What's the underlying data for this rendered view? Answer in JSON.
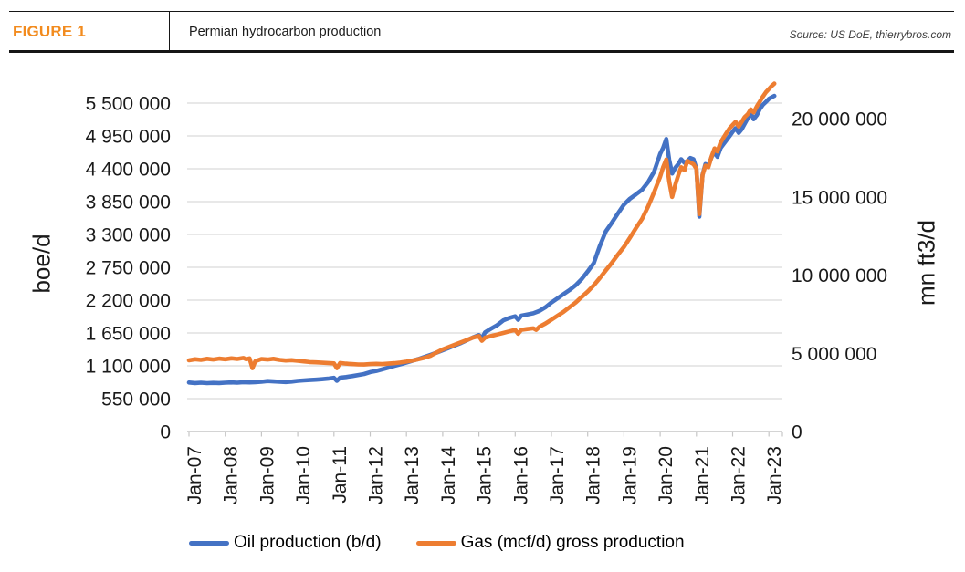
{
  "header": {
    "figure_label": "FIGURE 1",
    "title": "Permian hydrocarbon production",
    "source": "Source: US DoE, thierrybros.com"
  },
  "colors": {
    "oil": "#4472C4",
    "gas": "#ED7D31",
    "figure_label": "#F28B1E",
    "gridline": "#D9D9D9",
    "axis_line": "#C6C6C6",
    "text": "#1a1a1a"
  },
  "chart_data": {
    "type": "line",
    "title": "Permian hydrocarbon production",
    "grid": "horizontal",
    "legend_position": "bottom",
    "left_axis": {
      "title": "boe/d",
      "min": 0,
      "max": 5500000,
      "ticks": [
        {
          "value": 0,
          "label": "0"
        },
        {
          "value": 550000,
          "label": "550 000"
        },
        {
          "value": 1100000,
          "label": "1 100 000"
        },
        {
          "value": 1650000,
          "label": "1 650 000"
        },
        {
          "value": 2200000,
          "label": "2 200 000"
        },
        {
          "value": 2750000,
          "label": "2 750 000"
        },
        {
          "value": 3300000,
          "label": "3 300 000"
        },
        {
          "value": 3850000,
          "label": "3 850 000"
        },
        {
          "value": 4400000,
          "label": "4 400 000"
        },
        {
          "value": 4950000,
          "label": "4 950 000"
        },
        {
          "value": 5500000,
          "label": "5 500 000"
        }
      ]
    },
    "right_axis": {
      "title": "mn ft3/d",
      "min": 0,
      "max": 21000000,
      "ticks": [
        {
          "value": 0,
          "label": "0"
        },
        {
          "value": 5000000,
          "label": "5 000 000"
        },
        {
          "value": 10000000,
          "label": "10 000 000"
        },
        {
          "value": 15000000,
          "label": "15 000 000"
        },
        {
          "value": 20000000,
          "label": "20 000 000"
        }
      ]
    },
    "x_axis": {
      "start_year": 2007,
      "end_year": 2023,
      "ticks": [
        "Jan-07",
        "Jan-08",
        "Jan-09",
        "Jan-10",
        "Jan-11",
        "Jan-12",
        "Jan-13",
        "Jan-14",
        "Jan-15",
        "Jan-16",
        "Jan-17",
        "Jan-18",
        "Jan-19",
        "Jan-20",
        "Jan-21",
        "Jan-22",
        "Jan-23"
      ]
    },
    "series": [
      {
        "name": "Oil production (b/d)",
        "axis": "left",
        "color_key": "oil",
        "points": [
          [
            2007,
            820000
          ],
          [
            2007.17,
            812000
          ],
          [
            2007.33,
            818000
          ],
          [
            2007.5,
            810000
          ],
          [
            2007.67,
            815000
          ],
          [
            2007.83,
            812000
          ],
          [
            2008,
            818000
          ],
          [
            2008.17,
            822000
          ],
          [
            2008.33,
            818000
          ],
          [
            2008.5,
            825000
          ],
          [
            2008.67,
            822000
          ],
          [
            2008.83,
            826000
          ],
          [
            2009,
            832000
          ],
          [
            2009.17,
            845000
          ],
          [
            2009.33,
            838000
          ],
          [
            2009.5,
            832000
          ],
          [
            2009.67,
            828000
          ],
          [
            2009.83,
            835000
          ],
          [
            2010,
            848000
          ],
          [
            2010.17,
            855000
          ],
          [
            2010.33,
            862000
          ],
          [
            2010.5,
            868000
          ],
          [
            2010.67,
            875000
          ],
          [
            2010.83,
            885000
          ],
          [
            2011,
            898000
          ],
          [
            2011.08,
            848000
          ],
          [
            2011.17,
            902000
          ],
          [
            2011.33,
            912000
          ],
          [
            2011.5,
            928000
          ],
          [
            2011.67,
            945000
          ],
          [
            2011.83,
            962000
          ],
          [
            2012,
            995000
          ],
          [
            2012.17,
            1015000
          ],
          [
            2012.33,
            1040000
          ],
          [
            2012.5,
            1070000
          ],
          [
            2012.67,
            1100000
          ],
          [
            2012.83,
            1125000
          ],
          [
            2013,
            1155000
          ],
          [
            2013.17,
            1185000
          ],
          [
            2013.33,
            1215000
          ],
          [
            2013.5,
            1250000
          ],
          [
            2013.67,
            1285000
          ],
          [
            2013.83,
            1320000
          ],
          [
            2014,
            1360000
          ],
          [
            2014.17,
            1400000
          ],
          [
            2014.33,
            1440000
          ],
          [
            2014.5,
            1480000
          ],
          [
            2014.67,
            1530000
          ],
          [
            2014.83,
            1575000
          ],
          [
            2015,
            1615000
          ],
          [
            2015.08,
            1560000
          ],
          [
            2015.17,
            1660000
          ],
          [
            2015.33,
            1720000
          ],
          [
            2015.5,
            1780000
          ],
          [
            2015.67,
            1860000
          ],
          [
            2015.83,
            1900000
          ],
          [
            2016,
            1930000
          ],
          [
            2016.08,
            1870000
          ],
          [
            2016.17,
            1940000
          ],
          [
            2016.33,
            1960000
          ],
          [
            2016.5,
            1980000
          ],
          [
            2016.67,
            2020000
          ],
          [
            2016.83,
            2080000
          ],
          [
            2017,
            2160000
          ],
          [
            2017.17,
            2230000
          ],
          [
            2017.33,
            2300000
          ],
          [
            2017.5,
            2370000
          ],
          [
            2017.67,
            2450000
          ],
          [
            2017.83,
            2550000
          ],
          [
            2018,
            2680000
          ],
          [
            2018.17,
            2820000
          ],
          [
            2018.33,
            3100000
          ],
          [
            2018.5,
            3350000
          ],
          [
            2018.67,
            3500000
          ],
          [
            2018.83,
            3650000
          ],
          [
            2019,
            3800000
          ],
          [
            2019.17,
            3900000
          ],
          [
            2019.33,
            3970000
          ],
          [
            2019.5,
            4050000
          ],
          [
            2019.67,
            4180000
          ],
          [
            2019.83,
            4350000
          ],
          [
            2020,
            4650000
          ],
          [
            2020.08,
            4750000
          ],
          [
            2020.17,
            4900000
          ],
          [
            2020.25,
            4550000
          ],
          [
            2020.33,
            4320000
          ],
          [
            2020.42,
            4420000
          ],
          [
            2020.5,
            4480000
          ],
          [
            2020.58,
            4560000
          ],
          [
            2020.67,
            4500000
          ],
          [
            2020.75,
            4530000
          ],
          [
            2020.83,
            4580000
          ],
          [
            2020.92,
            4560000
          ],
          [
            2021,
            4400000
          ],
          [
            2021.08,
            3600000
          ],
          [
            2021.17,
            4300000
          ],
          [
            2021.25,
            4480000
          ],
          [
            2021.33,
            4450000
          ],
          [
            2021.42,
            4600000
          ],
          [
            2021.5,
            4680000
          ],
          [
            2021.58,
            4600000
          ],
          [
            2021.67,
            4750000
          ],
          [
            2021.83,
            4880000
          ],
          [
            2021.92,
            4950000
          ],
          [
            2022,
            5020000
          ],
          [
            2022.08,
            5080000
          ],
          [
            2022.17,
            5000000
          ],
          [
            2022.25,
            5060000
          ],
          [
            2022.33,
            5150000
          ],
          [
            2022.42,
            5250000
          ],
          [
            2022.5,
            5330000
          ],
          [
            2022.58,
            5230000
          ],
          [
            2022.67,
            5300000
          ],
          [
            2022.75,
            5400000
          ],
          [
            2022.83,
            5470000
          ],
          [
            2022.92,
            5520000
          ],
          [
            2023,
            5570000
          ],
          [
            2023.08,
            5600000
          ],
          [
            2023.15,
            5620000
          ]
        ]
      },
      {
        "name": "Gas (mcf/d) gross production",
        "axis": "right",
        "color_key": "gas",
        "points": [
          [
            2007,
            4550000
          ],
          [
            2007.17,
            4620000
          ],
          [
            2007.33,
            4580000
          ],
          [
            2007.5,
            4650000
          ],
          [
            2007.67,
            4600000
          ],
          [
            2007.83,
            4660000
          ],
          [
            2008,
            4620000
          ],
          [
            2008.17,
            4680000
          ],
          [
            2008.33,
            4640000
          ],
          [
            2008.5,
            4700000
          ],
          [
            2008.58,
            4620000
          ],
          [
            2008.67,
            4680000
          ],
          [
            2008.75,
            4050000
          ],
          [
            2008.83,
            4500000
          ],
          [
            2009,
            4640000
          ],
          [
            2009.17,
            4600000
          ],
          [
            2009.33,
            4650000
          ],
          [
            2009.5,
            4580000
          ],
          [
            2009.67,
            4540000
          ],
          [
            2009.83,
            4560000
          ],
          [
            2010,
            4520000
          ],
          [
            2010.17,
            4480000
          ],
          [
            2010.33,
            4440000
          ],
          [
            2010.5,
            4420000
          ],
          [
            2010.67,
            4400000
          ],
          [
            2010.83,
            4380000
          ],
          [
            2011,
            4360000
          ],
          [
            2011.08,
            4050000
          ],
          [
            2011.17,
            4380000
          ],
          [
            2011.33,
            4340000
          ],
          [
            2011.5,
            4310000
          ],
          [
            2011.67,
            4290000
          ],
          [
            2011.83,
            4280000
          ],
          [
            2012,
            4310000
          ],
          [
            2012.17,
            4330000
          ],
          [
            2012.33,
            4310000
          ],
          [
            2012.5,
            4340000
          ],
          [
            2012.67,
            4370000
          ],
          [
            2012.83,
            4410000
          ],
          [
            2013,
            4470000
          ],
          [
            2013.17,
            4540000
          ],
          [
            2013.33,
            4620000
          ],
          [
            2013.5,
            4720000
          ],
          [
            2013.67,
            4850000
          ],
          [
            2013.83,
            5050000
          ],
          [
            2014,
            5250000
          ],
          [
            2014.17,
            5400000
          ],
          [
            2014.33,
            5550000
          ],
          [
            2014.5,
            5700000
          ],
          [
            2014.67,
            5850000
          ],
          [
            2014.83,
            6000000
          ],
          [
            2015,
            6100000
          ],
          [
            2015.08,
            5800000
          ],
          [
            2015.17,
            6000000
          ],
          [
            2015.33,
            6100000
          ],
          [
            2015.5,
            6200000
          ],
          [
            2015.67,
            6300000
          ],
          [
            2015.83,
            6400000
          ],
          [
            2016,
            6500000
          ],
          [
            2016.08,
            6250000
          ],
          [
            2016.17,
            6500000
          ],
          [
            2016.33,
            6550000
          ],
          [
            2016.5,
            6600000
          ],
          [
            2016.58,
            6500000
          ],
          [
            2016.67,
            6700000
          ],
          [
            2016.83,
            6900000
          ],
          [
            2017,
            7150000
          ],
          [
            2017.17,
            7400000
          ],
          [
            2017.33,
            7650000
          ],
          [
            2017.5,
            7950000
          ],
          [
            2017.67,
            8250000
          ],
          [
            2017.83,
            8600000
          ],
          [
            2018,
            8950000
          ],
          [
            2018.17,
            9350000
          ],
          [
            2018.33,
            9800000
          ],
          [
            2018.5,
            10300000
          ],
          [
            2018.67,
            10800000
          ],
          [
            2018.83,
            11300000
          ],
          [
            2019,
            11800000
          ],
          [
            2019.17,
            12400000
          ],
          [
            2019.33,
            13000000
          ],
          [
            2019.5,
            13600000
          ],
          [
            2019.67,
            14400000
          ],
          [
            2019.83,
            15300000
          ],
          [
            2020,
            16300000
          ],
          [
            2020.08,
            16900000
          ],
          [
            2020.17,
            17400000
          ],
          [
            2020.25,
            16000000
          ],
          [
            2020.33,
            15000000
          ],
          [
            2020.42,
            15800000
          ],
          [
            2020.5,
            16400000
          ],
          [
            2020.58,
            16900000
          ],
          [
            2020.67,
            16700000
          ],
          [
            2020.75,
            17300000
          ],
          [
            2020.83,
            17200000
          ],
          [
            2020.92,
            17100000
          ],
          [
            2021,
            16800000
          ],
          [
            2021.08,
            13900000
          ],
          [
            2021.17,
            16400000
          ],
          [
            2021.25,
            17000000
          ],
          [
            2021.33,
            16900000
          ],
          [
            2021.42,
            17600000
          ],
          [
            2021.5,
            18100000
          ],
          [
            2021.58,
            17900000
          ],
          [
            2021.67,
            18500000
          ],
          [
            2021.83,
            19100000
          ],
          [
            2021.92,
            19400000
          ],
          [
            2022,
            19600000
          ],
          [
            2022.08,
            19800000
          ],
          [
            2022.17,
            19500000
          ],
          [
            2022.25,
            19800000
          ],
          [
            2022.33,
            20100000
          ],
          [
            2022.42,
            20300000
          ],
          [
            2022.5,
            20600000
          ],
          [
            2022.58,
            20400000
          ],
          [
            2022.67,
            20800000
          ],
          [
            2022.75,
            21100000
          ],
          [
            2022.83,
            21400000
          ],
          [
            2022.92,
            21700000
          ],
          [
            2023,
            21900000
          ],
          [
            2023.08,
            22100000
          ],
          [
            2023.15,
            22250000
          ]
        ]
      }
    ]
  }
}
